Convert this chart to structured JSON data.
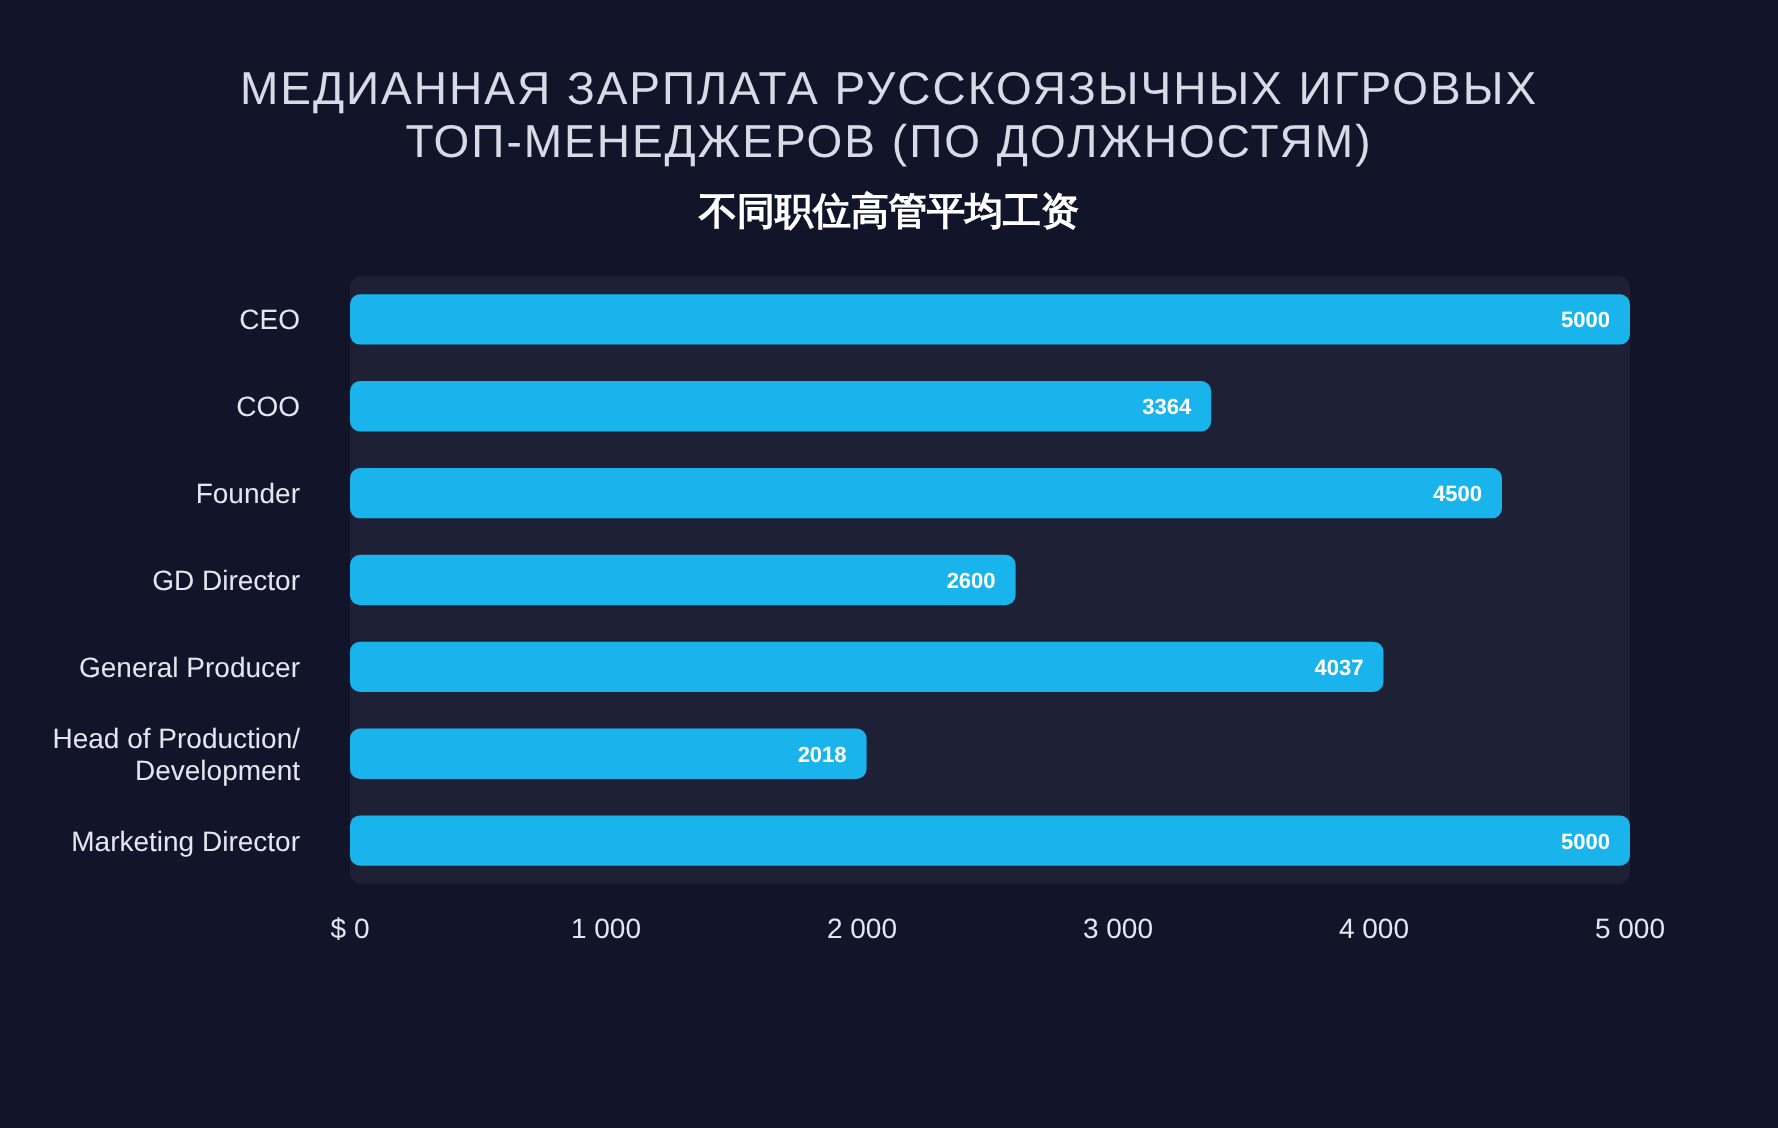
{
  "chart_data": {
    "type": "bar",
    "orientation": "horizontal",
    "title": "МЕДИАННАЯ ЗАРПЛАТА РУССКОЯЗЫЧНЫХ ИГРОВЫХ\nТОП-МЕНЕДЖЕРОВ (ПО ДОЛЖНОСТЯМ)",
    "subtitle": "不同职位高管平均工资",
    "categories": [
      "CEO",
      "COO",
      "Founder",
      "GD Director",
      "General Producer",
      "Head of Production/\nDevelopment",
      "Marketing Director"
    ],
    "values": [
      5000,
      3364,
      4500,
      2600,
      4037,
      2018,
      5000
    ],
    "color": "#1ab4ec",
    "data_labels": true,
    "xlim": [
      0,
      5000
    ],
    "xticks": [
      {
        "value": 0,
        "label": "$ 0"
      },
      {
        "value": 1000,
        "label": "1 000"
      },
      {
        "value": 2000,
        "label": "2 000"
      },
      {
        "value": 3000,
        "label": "3 000"
      },
      {
        "value": 4000,
        "label": "4 000"
      },
      {
        "value": 5000,
        "label": "5 000"
      }
    ],
    "grid": false
  }
}
